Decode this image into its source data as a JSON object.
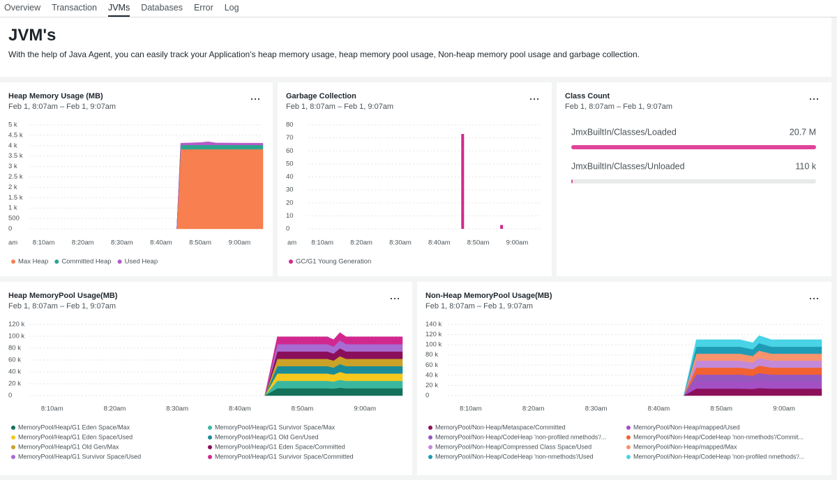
{
  "tabs": {
    "items": [
      "Overview",
      "Transaction",
      "JVMs",
      "Databases",
      "Error",
      "Log"
    ],
    "active": 2
  },
  "header": {
    "title": "JVM's",
    "description": "With the help of Java Agent, you can easily track your Application’s heap memory usage, heap memory pool usage, Non-heap memory pool usage and garbage collection."
  },
  "chart_data": [
    {
      "type": "area",
      "title": "Heap Memory Usage (MB)",
      "subtitle": "Feb 1, 8:07am – Feb 1, 9:07am",
      "x": [
        "8:44am",
        "8:45am",
        "8:50am",
        "8:52am",
        "8:54am",
        "9:06am"
      ],
      "xlim": [
        "8:01am",
        "9:06am"
      ],
      "xticks": [
        {
          "value": "8:00am",
          "label": "am"
        },
        "8:10am",
        "8:20am",
        "8:30am",
        "8:40am",
        "8:50am",
        "9:00am"
      ],
      "ylim": [
        0,
        5000
      ],
      "yticks": [
        0,
        500,
        {
          "value": 1000,
          "label": "1 k"
        },
        {
          "value": 1500,
          "label": "1.5 k"
        },
        {
          "value": 2000,
          "label": "2 k"
        },
        {
          "value": 2500,
          "label": "2.5 k"
        },
        {
          "value": 3000,
          "label": "3 k"
        },
        {
          "value": 3500,
          "label": "3.5 k"
        },
        {
          "value": 4000,
          "label": "4 k"
        },
        {
          "value": 4500,
          "label": "4.5 k"
        },
        {
          "value": 5000,
          "label": "5 k"
        }
      ],
      "grid": true,
      "series": [
        {
          "name": "Max Heap",
          "color": "#f77f50",
          "values": [
            0,
            3830,
            3830,
            3830,
            3830,
            3830
          ]
        },
        {
          "name": "Committed Heap",
          "color": "#2aa58f",
          "values": [
            0,
            200,
            200,
            200,
            200,
            200
          ]
        },
        {
          "name": "Used Heap",
          "color": "#b45bc8",
          "values": [
            0,
            90,
            120,
            160,
            100,
            90
          ]
        }
      ]
    },
    {
      "type": "bar",
      "title": "Garbage Collection",
      "subtitle": "Feb 1, 8:07am – Feb 1, 9:07am",
      "x": [
        "8:46am",
        "8:56am"
      ],
      "xlim": [
        "8:01am",
        "9:06am"
      ],
      "xticks": [
        {
          "value": "8:00am",
          "label": "am"
        },
        "8:10am",
        "8:20am",
        "8:30am",
        "8:40am",
        "8:50am",
        "9:00am"
      ],
      "ylim": [
        0,
        80
      ],
      "yticks": [
        0,
        10,
        20,
        30,
        40,
        50,
        60,
        70,
        80
      ],
      "grid": true,
      "series": [
        {
          "name": "GC/G1 Young Generation",
          "color": "#d1288f",
          "values": [
            73,
            3
          ]
        }
      ]
    },
    {
      "type": "hbar",
      "title": "Class Count",
      "subtitle": "Feb 1, 8:07am – Feb 1, 9:07am",
      "categories": [
        "JmxBuiltIn/Classes/Loaded",
        "JmxBuiltIn/Classes/Unloaded"
      ],
      "values": [
        20700000,
        110000
      ],
      "value_labels": [
        "20.7 M",
        "110 k"
      ],
      "color": "#e0449a"
    },
    {
      "type": "area",
      "title": "Heap MemoryPool Usage(MB)",
      "subtitle": "Feb 1, 8:07am – Feb 1, 9:07am",
      "x": [
        "8:44am",
        "8:46am",
        "8:54am",
        "8:55am",
        "8:56am",
        "8:57am",
        "9:06am"
      ],
      "xlim": [
        "8:03am",
        "9:06am"
      ],
      "xticks": [
        "8:10am",
        "8:20am",
        "8:30am",
        "8:40am",
        "8:50am",
        "9:00am"
      ],
      "ylim": [
        0,
        120000
      ],
      "yticks": [
        0,
        {
          "value": 20000,
          "label": "20 k"
        },
        {
          "value": 40000,
          "label": "40 k"
        },
        {
          "value": 60000,
          "label": "60 k"
        },
        {
          "value": 80000,
          "label": "80 k"
        },
        {
          "value": 100000,
          "label": "100 k"
        },
        {
          "value": 120000,
          "label": "120 k"
        }
      ],
      "grid": true,
      "series": [
        {
          "name": "MemoryPool/Heap/G1 Eden Space/Max",
          "color": "#13705a",
          "values": [
            0,
            12400,
            12400,
            11800,
            13300,
            12400,
            12400
          ]
        },
        {
          "name": "MemoryPool/Heap/G1 Survivor Space/Max",
          "color": "#3ab89f",
          "values": [
            0,
            12400,
            12400,
            11800,
            13300,
            12400,
            12400
          ]
        },
        {
          "name": "MemoryPool/Heap/G1 Eden Space/Used",
          "color": "#f6c81e",
          "values": [
            0,
            12400,
            12400,
            11800,
            13300,
            12400,
            12400
          ]
        },
        {
          "name": "MemoryPool/Heap/G1 Old Gen/Used",
          "color": "#1a8c98",
          "values": [
            0,
            12400,
            12400,
            11800,
            13300,
            12400,
            12400
          ]
        },
        {
          "name": "MemoryPool/Heap/G1 Old Gen/Max",
          "color": "#c9a227",
          "values": [
            0,
            12400,
            12400,
            11800,
            13300,
            12400,
            12400
          ]
        },
        {
          "name": "MemoryPool/Heap/G1 Eden Space/Committed",
          "color": "#8a0e5a",
          "values": [
            0,
            12400,
            12400,
            11800,
            13300,
            12400,
            12400
          ]
        },
        {
          "name": "MemoryPool/Heap/G1 Survivor Space/Used",
          "color": "#a86bd2",
          "values": [
            0,
            12400,
            12400,
            11800,
            13300,
            12400,
            12400
          ]
        },
        {
          "name": "MemoryPool/Heap/G1 Survivor Space/Committed",
          "color": "#d1288f",
          "values": [
            0,
            12400,
            12400,
            11800,
            13300,
            12400,
            12400
          ]
        }
      ]
    },
    {
      "type": "area",
      "title": "Non-Heap MemoryPool Usage(MB)",
      "subtitle": "Feb 1, 8:07am – Feb 1, 9:07am",
      "x": [
        "8:44am",
        "8:46am",
        "8:53am",
        "8:55am",
        "8:56am",
        "8:58am",
        "9:06am"
      ],
      "xlim": [
        "8:03am",
        "9:06am"
      ],
      "xticks": [
        "8:10am",
        "8:20am",
        "8:30am",
        "8:40am",
        "8:50am",
        "9:00am"
      ],
      "ylim": [
        0,
        140000
      ],
      "yticks": [
        0,
        {
          "value": 20000,
          "label": "20 k"
        },
        {
          "value": 40000,
          "label": "40 k"
        },
        {
          "value": 60000,
          "label": "60 k"
        },
        {
          "value": 80000,
          "label": "80 k"
        },
        {
          "value": 100000,
          "label": "100 k"
        },
        {
          "value": 120000,
          "label": "120 k"
        },
        {
          "value": 140000,
          "label": "140 k"
        }
      ],
      "grid": true,
      "series": [
        {
          "name": "MemoryPool/Non-Heap/Metaspace/Committed",
          "color": "#8b1059",
          "values": [
            0,
            13750,
            13750,
            13000,
            14750,
            13750,
            13750
          ]
        },
        {
          "name": "MemoryPool/Non-Heap/mapped/Used",
          "color": "#a54fc4",
          "values": [
            0,
            13750,
            13750,
            13000,
            14750,
            13750,
            13750
          ]
        },
        {
          "name": "MemoryPool/Non-Heap/CodeHeap 'non-profiled nmethods'/...",
          "color": "#9658bf",
          "values": [
            0,
            13750,
            13750,
            13000,
            14750,
            13750,
            13750
          ]
        },
        {
          "name": "MemoryPool/Non-Heap/CodeHeap 'non-nmethods'/Commit...",
          "color": "#f2612f",
          "values": [
            0,
            13750,
            13750,
            13000,
            14750,
            13750,
            13750
          ]
        },
        {
          "name": "MemoryPool/Non-Heap/Compressed Class Space/Used",
          "color": "#c48ad8",
          "values": [
            0,
            13750,
            13750,
            13000,
            14750,
            13750,
            13750
          ]
        },
        {
          "name": "MemoryPool/Non-Heap/mapped/Max",
          "color": "#f7936d",
          "values": [
            0,
            13750,
            13750,
            13000,
            14750,
            13750,
            13750
          ]
        },
        {
          "name": "MemoryPool/Non-Heap/CodeHeap 'non-nmethods'/Used",
          "color": "#1e9cb5",
          "values": [
            0,
            13750,
            13750,
            13000,
            14750,
            13750,
            13750
          ]
        },
        {
          "name": "MemoryPool/Non-Heap/CodeHeap 'non-profiled nmethods'/...",
          "color": "#49d3e6",
          "values": [
            0,
            13750,
            13750,
            13000,
            14750,
            13750,
            13750
          ]
        }
      ]
    }
  ]
}
